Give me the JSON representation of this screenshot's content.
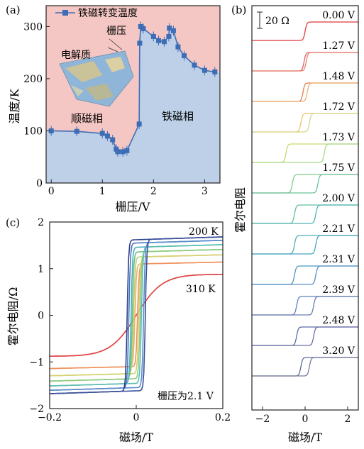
{
  "chart_data": [
    {
      "panel": "(a)",
      "type": "line",
      "series": [
        {
          "name": "铁磁转变温度",
          "x": [
            0,
            0.5,
            1.0,
            1.1,
            1.2,
            1.27,
            1.3,
            1.4,
            1.48,
            1.72,
            1.73,
            1.75,
            1.8,
            2.0,
            2.1,
            2.21,
            2.3,
            2.31,
            2.39,
            2.48,
            2.6,
            2.8,
            3.0,
            3.2
          ],
          "y": [
            100,
            99,
            95,
            90,
            83,
            65,
            60,
            60,
            62,
            113,
            268,
            300,
            296,
            281,
            273,
            271,
            281,
            297,
            292,
            261,
            244,
            226,
            216,
            213
          ]
        }
      ],
      "xlabel": "栅压/V",
      "ylabel": "温度/K",
      "xlim": [
        -0.1,
        3.3
      ],
      "ylim": [
        0,
        340
      ],
      "xticks": [
        "0",
        "1",
        "2",
        "3"
      ],
      "yticks": [
        "0",
        "100",
        "200",
        "300"
      ],
      "annotations": [
        "电解质",
        "栅压",
        "顺磁相",
        "铁磁相"
      ],
      "colors": {
        "para_region": "#f4c7c4",
        "ferro_region": "#bdd0e8",
        "marker": "#3d6db5"
      }
    },
    {
      "panel": "(b)",
      "type": "line",
      "xlabel": "磁场/T",
      "ylabel": "霍尔电阻",
      "xticks": [
        "−2",
        "0",
        "2"
      ],
      "xlim": [
        -2.5,
        2.5
      ],
      "scale_bar": "20 Ω",
      "series": [
        {
          "name": "0.00 V",
          "coercive_field": 0.0,
          "colors": [
            "#e05252",
            "#e05252"
          ]
        },
        {
          "name": "1.27 V",
          "coercive_field": 0.05,
          "colors": [
            "#e06060",
            "#e88070"
          ]
        },
        {
          "name": "1.48 V",
          "coercive_field": 0.1,
          "colors": [
            "#e47a52",
            "#ecb070"
          ]
        },
        {
          "name": "1.72 V",
          "coercive_field": 0.2,
          "colors": [
            "#e9c46a",
            "#d9d48a"
          ]
        },
        {
          "name": "1.73 V",
          "coercive_field": 0.9,
          "colors": [
            "#c8d96a",
            "#a9d98e"
          ]
        },
        {
          "name": "1.75 V",
          "coercive_field": 0.6,
          "colors": [
            "#80c88a",
            "#6cc09a"
          ]
        },
        {
          "name": "2.00 V",
          "coercive_field": 0.5,
          "colors": [
            "#5ebfa0",
            "#4fb5b0"
          ]
        },
        {
          "name": "2.21 V",
          "coercive_field": 0.5,
          "colors": [
            "#4fb0b8",
            "#47a5c0"
          ]
        },
        {
          "name": "2.31 V",
          "coercive_field": 0.5,
          "colors": [
            "#4a98bf",
            "#5a90c0"
          ]
        },
        {
          "name": "2.39 V",
          "coercive_field": 0.4,
          "colors": [
            "#5a84bd",
            "#6a7cb0"
          ]
        },
        {
          "name": "2.48 V",
          "coercive_field": 0.4,
          "colors": [
            "#5c6aa5",
            "#6a6ea5"
          ]
        },
        {
          "name": "3.20 V",
          "coercive_field": 0.2,
          "colors": [
            "#606a95",
            "#757c99"
          ]
        }
      ]
    },
    {
      "panel": "(c)",
      "type": "line",
      "xlabel": "磁场/T",
      "ylabel": "霍尔电阻/Ω",
      "xlim": [
        -0.2,
        0.2
      ],
      "ylim": [
        -2,
        2
      ],
      "xticks": [
        "−0.2",
        "0",
        "0.2"
      ],
      "yticks": [
        "−2",
        "−1",
        "0",
        "1",
        "2"
      ],
      "annotations": [
        "200 K",
        "310 K",
        "栅压为2.1 V"
      ],
      "series": [
        {
          "Rs": 1.62,
          "Hc": 0.021,
          "colors": [
            "#2b3f8c",
            "#3a4f9a"
          ]
        },
        {
          "Rs": 1.55,
          "Hc": 0.017,
          "colors": [
            "#4a78c0",
            "#5a8ccc"
          ]
        },
        {
          "Rs": 1.46,
          "Hc": 0.012,
          "colors": [
            "#4cb0c0",
            "#5cc0b0"
          ]
        },
        {
          "Rs": 1.36,
          "Hc": 0.009,
          "colors": [
            "#70c080",
            "#90cc80"
          ]
        },
        {
          "Rs": 1.25,
          "Hc": 0.006,
          "colors": [
            "#b8d070",
            "#d8d070"
          ]
        },
        {
          "Rs": 1.1,
          "Hc": 0.003,
          "colors": [
            "#eeb060",
            "#f09060"
          ]
        },
        {
          "Rs": 0.88,
          "Hc": 0.0,
          "colors": [
            "#e04848",
            "#e04848"
          ]
        }
      ]
    }
  ]
}
